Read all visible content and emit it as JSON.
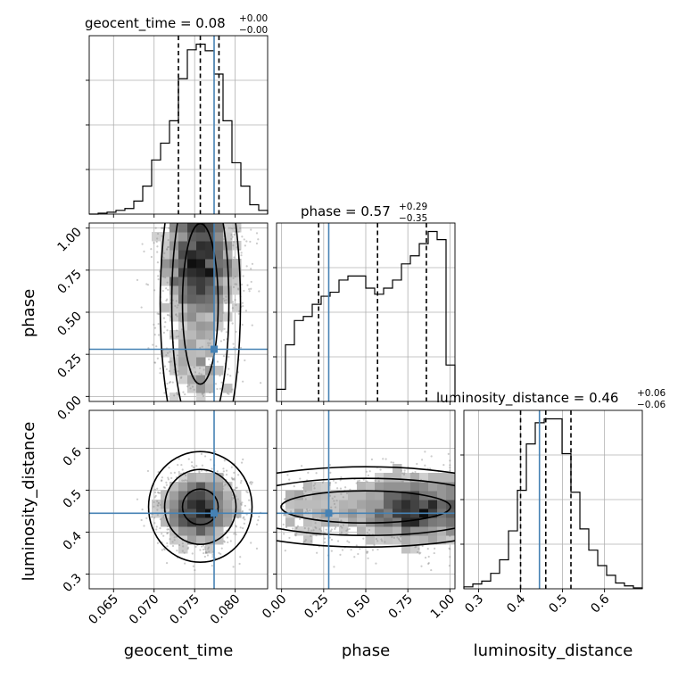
{
  "chart_data": {
    "type": "corner",
    "parameters": [
      "geocent_time",
      "phase",
      "luminosity_distance"
    ],
    "titles": {
      "geocent_time": {
        "label": "geocent_time",
        "median": "0.08",
        "plus": "+0.00",
        "minus": "−0.00"
      },
      "phase": {
        "label": "phase",
        "median": "0.57",
        "plus": "+0.29",
        "minus": "−0.35"
      },
      "luminosity_distance": {
        "label": "luminosity_distance",
        "median": "0.46",
        "plus": "+0.06",
        "minus": "−0.06"
      }
    },
    "axis_labels": {
      "x": [
        "geocent_time",
        "phase",
        "luminosity_distance"
      ],
      "y": [
        "phase",
        "luminosity_distance"
      ]
    },
    "ranges": {
      "geocent_time": [
        0.062,
        0.084
      ],
      "phase": [
        -0.03,
        1.03
      ],
      "luminosity_distance": [
        0.265,
        0.69
      ]
    },
    "ticks": {
      "geocent_time": [
        "0.065",
        "0.070",
        "0.075",
        "0.080"
      ],
      "phase": [
        "0.00",
        "0.25",
        "0.50",
        "0.75",
        "1.00"
      ],
      "luminosity_distance_x": [
        "0.3",
        "0.4",
        "0.5",
        "0.6"
      ],
      "luminosity_distance_y": [
        "0.3",
        "0.4",
        "0.5",
        "0.6"
      ]
    },
    "truths": {
      "geocent_time": 0.0774,
      "phase": 0.28,
      "luminosity_distance": 0.445
    },
    "quantiles": {
      "geocent_time": [
        0.073,
        0.0757,
        0.078
      ],
      "phase": [
        0.22,
        0.57,
        0.86
      ],
      "luminosity_distance": [
        0.4,
        0.46,
        0.52
      ]
    },
    "histograms": {
      "geocent_time": {
        "bins": [
          0.062,
          0.0631,
          0.0642,
          0.0653,
          0.0664,
          0.0675,
          0.0686,
          0.0697,
          0.0708,
          0.0719,
          0.073,
          0.0741,
          0.0752,
          0.0763,
          0.0774,
          0.0785,
          0.0796,
          0.0807,
          0.0818,
          0.0829,
          0.084
        ],
        "counts": [
          0,
          1,
          2,
          4,
          6,
          14,
          30,
          58,
          76,
          100,
          145,
          176,
          182,
          175,
          150,
          100,
          55,
          30,
          10,
          4
        ]
      },
      "phase": {
        "bins": [
          -0.03,
          0.023,
          0.076,
          0.129,
          0.182,
          0.235,
          0.288,
          0.341,
          0.394,
          0.447,
          0.5,
          0.553,
          0.606,
          0.659,
          0.712,
          0.765,
          0.818,
          0.871,
          0.924,
          0.977,
          1.03
        ],
        "counts": [
          6,
          28,
          40,
          42,
          48,
          52,
          54,
          60,
          62,
          62,
          56,
          53,
          56,
          60,
          68,
          72,
          78,
          84,
          80,
          18
        ]
      },
      "luminosity_distance": {
        "bins": [
          0.265,
          0.2863,
          0.3075,
          0.3288,
          0.35,
          0.3713,
          0.3925,
          0.4138,
          0.435,
          0.4563,
          0.4775,
          0.4988,
          0.52,
          0.5413,
          0.5625,
          0.5838,
          0.605,
          0.6263,
          0.6475,
          0.6688,
          0.69
        ],
        "counts": [
          2,
          5,
          8,
          16,
          30,
          60,
          102,
          150,
          172,
          176,
          176,
          140,
          100,
          62,
          40,
          24,
          14,
          6,
          3,
          1
        ]
      }
    },
    "grid": true
  }
}
